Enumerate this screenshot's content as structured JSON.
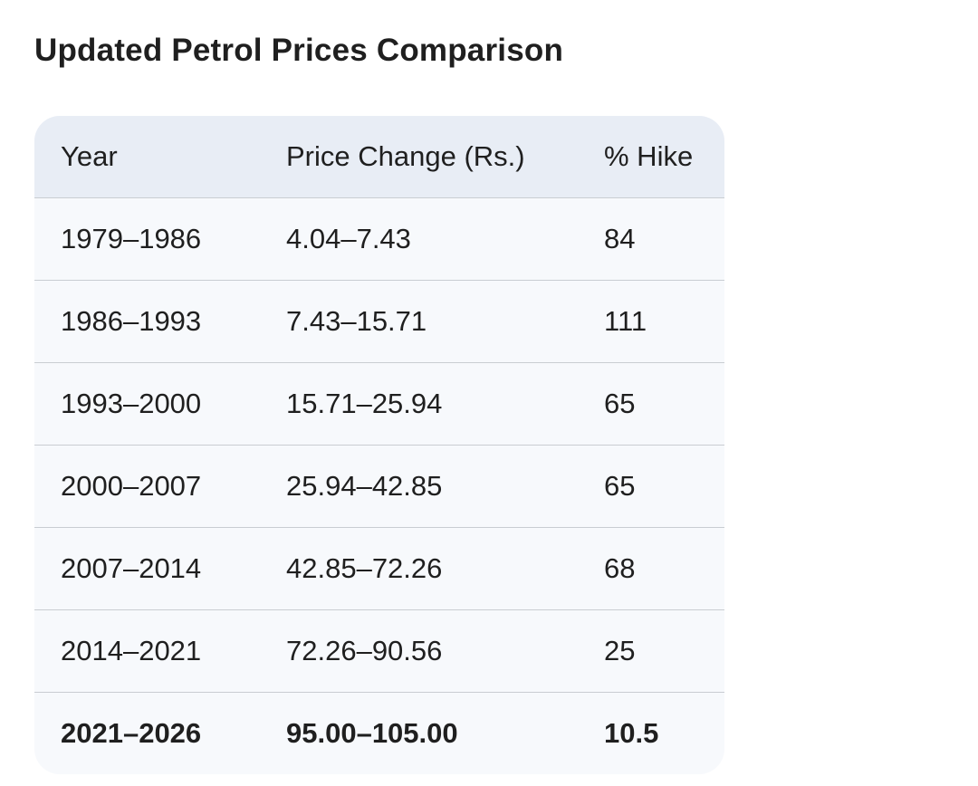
{
  "header": {
    "title": "Updated Petrol Prices Comparison"
  },
  "table": {
    "columns": [
      "Year",
      "Price Change (Rs.)",
      "% Hike"
    ],
    "rows": [
      [
        "1979–1986",
        "4.04–7.43",
        "84"
      ],
      [
        "1986–1993",
        "7.43–15.71",
        "111"
      ],
      [
        "1993–2000",
        "15.71–25.94",
        "65"
      ],
      [
        "2000–2007",
        "25.94–42.85",
        "65"
      ],
      [
        "2007–2014",
        "42.85–72.26",
        "68"
      ],
      [
        "2014–2021",
        "72.26–90.56",
        "25"
      ],
      [
        "2021–2026",
        "95.00–105.00",
        "10.5"
      ]
    ]
  }
}
